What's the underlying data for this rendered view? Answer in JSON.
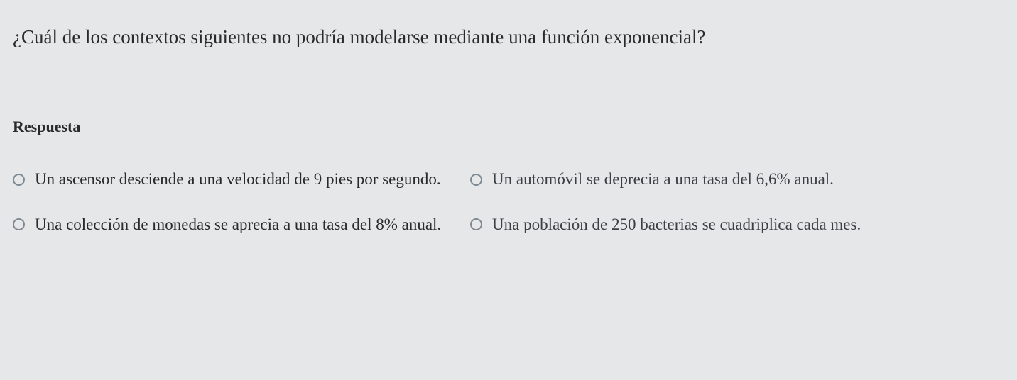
{
  "question": {
    "text": "¿Cuál de los contextos siguientes no podría modelarse mediante una función exponencial?"
  },
  "answer_heading": "Respuesta",
  "options": {
    "a": "Un ascensor desciende a una velocidad de 9 pies por segundo.",
    "b": "Un automóvil se deprecia a una tasa del 6,6% anual.",
    "c": "Una colección de monedas se aprecia a una tasa del 8% anual.",
    "d": "Una población de 250 bacterias se cuadriplica cada mes."
  },
  "colors": {
    "background": "#e5e7e9",
    "text": "#2a2a2a",
    "radio_border": "#7f8a93"
  },
  "typography": {
    "family": "Georgia, Times New Roman, serif",
    "question_fontsize": 27,
    "heading_fontsize": 22,
    "option_fontsize": 23
  }
}
